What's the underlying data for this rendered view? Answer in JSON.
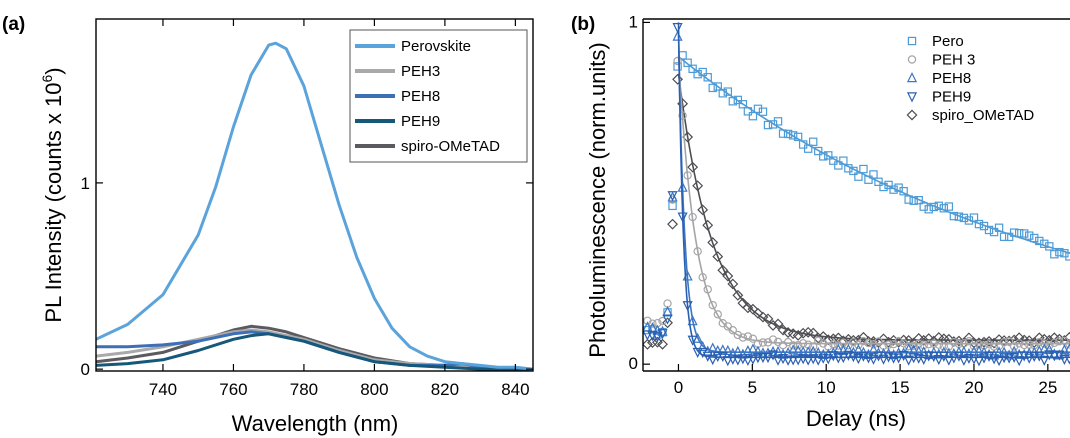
{
  "chart_data": [
    {
      "panel_label": "(a)",
      "type": "line",
      "xlabel": "Wavelength (nm)",
      "ylabel": "PL Intensity (counts x 10",
      "ylabel_sup": "6",
      "ylabel_end": ")",
      "xlim": [
        721,
        845
      ],
      "ylim": [
        -0.01,
        1.88
      ],
      "xticks": [
        740,
        760,
        780,
        800,
        820,
        840
      ],
      "yticks": [
        0,
        1
      ],
      "grid": false,
      "legend_position": "top-right",
      "series": [
        {
          "name": "Perovskite",
          "color": "#5ba3db",
          "x": [
            721,
            730,
            740,
            750,
            755,
            760,
            765,
            770,
            772,
            775,
            780,
            785,
            790,
            795,
            800,
            805,
            810,
            815,
            820,
            825,
            830,
            835,
            840,
            845
          ],
          "y": [
            0.16,
            0.24,
            0.4,
            0.72,
            0.98,
            1.3,
            1.58,
            1.74,
            1.75,
            1.72,
            1.52,
            1.2,
            0.88,
            0.6,
            0.38,
            0.22,
            0.12,
            0.07,
            0.04,
            0.03,
            0.02,
            0.01,
            0.01,
            0.0
          ]
        },
        {
          "name": "PEH3",
          "color": "#a9a9ab",
          "x": [
            721,
            730,
            740,
            750,
            760,
            765,
            770,
            775,
            780,
            790,
            800,
            810,
            820,
            830,
            845
          ],
          "y": [
            0.07,
            0.09,
            0.12,
            0.16,
            0.2,
            0.21,
            0.2,
            0.18,
            0.16,
            0.1,
            0.05,
            0.03,
            0.02,
            0.01,
            0.0
          ]
        },
        {
          "name": "PEH8",
          "color": "#3c6fb5",
          "x": [
            721,
            730,
            740,
            750,
            760,
            765,
            770,
            775,
            780,
            790,
            800,
            810,
            820,
            825,
            830,
            845
          ],
          "y": [
            0.12,
            0.12,
            0.13,
            0.15,
            0.19,
            0.2,
            0.19,
            0.17,
            0.15,
            0.09,
            0.04,
            0.02,
            0.02,
            0.03,
            0.01,
            0.0
          ]
        },
        {
          "name": "PEH9",
          "color": "#16587a",
          "x": [
            721,
            730,
            740,
            750,
            760,
            765,
            770,
            775,
            780,
            790,
            800,
            810,
            820,
            830,
            845
          ],
          "y": [
            0.02,
            0.03,
            0.05,
            0.1,
            0.16,
            0.18,
            0.19,
            0.17,
            0.15,
            0.09,
            0.04,
            0.02,
            0.01,
            0.0,
            0.0
          ]
        },
        {
          "name": "spiro-OMeTAD",
          "color": "#5a5a5f",
          "x": [
            721,
            730,
            740,
            750,
            760,
            765,
            770,
            775,
            780,
            790,
            800,
            810,
            820,
            830,
            845
          ],
          "y": [
            0.04,
            0.06,
            0.09,
            0.15,
            0.21,
            0.23,
            0.22,
            0.2,
            0.17,
            0.11,
            0.06,
            0.03,
            0.02,
            0.01,
            0.0
          ]
        }
      ]
    },
    {
      "panel_label": "(b)",
      "type": "scatter",
      "xlabel": "Delay (ns)",
      "ylabel": "Photoluminescence (norm.units)",
      "xlim": [
        -2.4,
        26.5
      ],
      "ylim": [
        -0.02,
        1.01
      ],
      "xticks": [
        0,
        5,
        10,
        15,
        20,
        25
      ],
      "xtick_labels": [
        "0",
        "5",
        "10",
        "15",
        "20",
        "25"
      ],
      "yticks": [
        0,
        1
      ],
      "grid": false,
      "legend_position": "top-right",
      "series": [
        {
          "name": "Pero",
          "marker": "square",
          "color": "#4d9bd6",
          "A": 0.9,
          "tau": 26.0,
          "fit": "decay",
          "onset": 0.1
        },
        {
          "name": "PEH 3",
          "marker": "circle",
          "color": "#a5a5a7",
          "A": 0.9,
          "tau": 1.15,
          "base": 0.06,
          "fit": "decay",
          "onset": 0.12
        },
        {
          "name": "PEH8",
          "marker": "triangle-up",
          "color": "#3b75c4",
          "A": 0.97,
          "tau": 0.42,
          "base": 0.035,
          "fit": "decay",
          "onset": 0.1
        },
        {
          "name": "PEH9",
          "marker": "triangle-down",
          "color": "#2a5fb0",
          "A": 1.0,
          "tau": 0.33,
          "base": 0.02,
          "fit": "decay",
          "onset": 0.08
        },
        {
          "name": "spiro_OMeTAD",
          "marker": "diamond",
          "color": "#4e4e52",
          "A": 0.85,
          "tau": 2.3,
          "base": 0.07,
          "fit": "decay",
          "onset": 0.06
        }
      ]
    }
  ]
}
